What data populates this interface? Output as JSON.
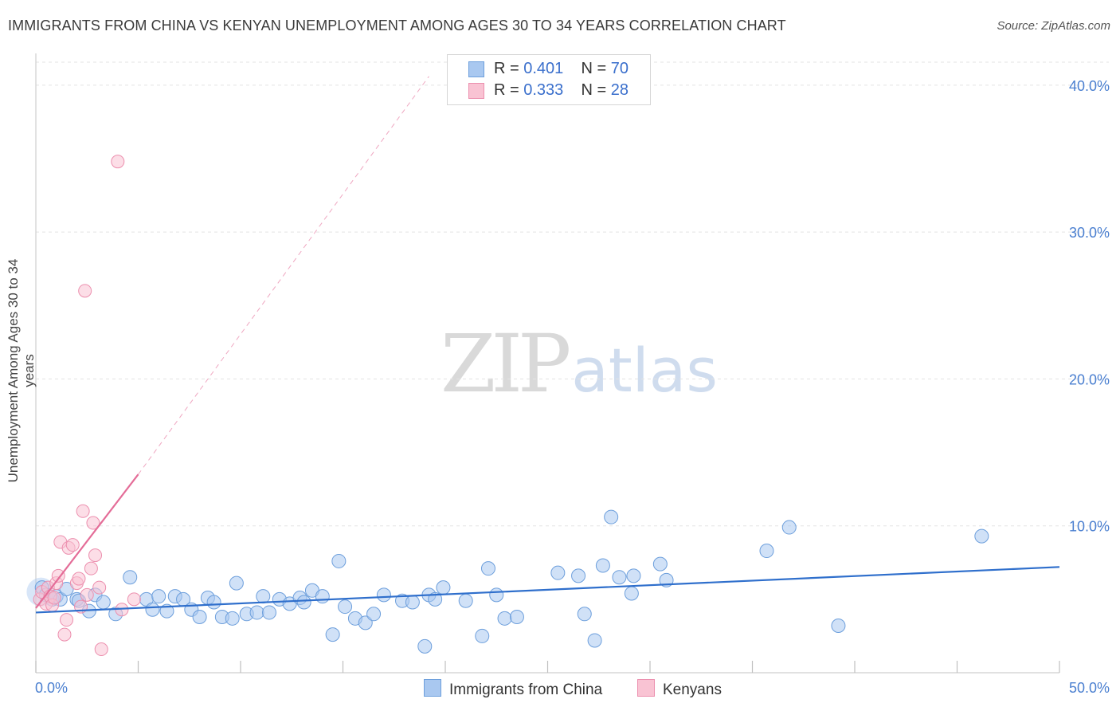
{
  "title": "IMMIGRANTS FROM CHINA VS KENYAN UNEMPLOYMENT AMONG AGES 30 TO 34 YEARS CORRELATION CHART",
  "source": "Source: ZipAtlas.com",
  "watermark": {
    "zip": "ZIP",
    "atlas": "atlas"
  },
  "legend": {
    "china": {
      "r_label": "R = ",
      "r_value": "0.401",
      "n_label": "N = ",
      "n_value": "70"
    },
    "kenyans": {
      "r_label": "R = ",
      "r_value": "0.333",
      "n_label": "N = ",
      "n_value": "28"
    }
  },
  "colors": {
    "china_fill": "#a9c8f0",
    "china_stroke": "#6d9fdc",
    "china_line": "#2f6fcc",
    "kenyans_fill": "#f9c3d3",
    "kenyans_stroke": "#ec8fae",
    "kenyans_line": "#e46d98",
    "grid": "#e3e3e3",
    "axis_text": "#4a7fd0"
  },
  "chart_data": {
    "type": "scatter",
    "title": "IMMIGRANTS FROM CHINA VS KENYAN UNEMPLOYMENT AMONG AGES 30 TO 34 YEARS CORRELATION CHART",
    "xlabel": "",
    "ylabel": "Unemployment Among Ages 30 to 34 years",
    "xlim": [
      0,
      50
    ],
    "ylim": [
      0,
      42
    ],
    "x_tick_labels": [
      "0.0%",
      "50.0%"
    ],
    "y_ticks": [
      10,
      20,
      30,
      40
    ],
    "y_tick_labels": [
      "10.0%",
      "20.0%",
      "30.0%",
      "40.0%"
    ],
    "grid": true,
    "legend_position": "bottom",
    "series": [
      {
        "name": "Immigrants from China",
        "points": [
          [
            0.3,
            5.8
          ],
          [
            0.5,
            5.3
          ],
          [
            0.8,
            5.0
          ],
          [
            1.0,
            5.2
          ],
          [
            1.2,
            5.0
          ],
          [
            1.5,
            5.7
          ],
          [
            2.0,
            5.0
          ],
          [
            2.1,
            4.9
          ],
          [
            2.6,
            4.2
          ],
          [
            2.9,
            5.3
          ],
          [
            3.3,
            4.8
          ],
          [
            3.9,
            4.0
          ],
          [
            4.6,
            6.5
          ],
          [
            5.4,
            5.0
          ],
          [
            5.7,
            4.3
          ],
          [
            6.0,
            5.2
          ],
          [
            6.4,
            4.2
          ],
          [
            6.8,
            5.2
          ],
          [
            7.2,
            5.0
          ],
          [
            7.6,
            4.3
          ],
          [
            8.0,
            3.8
          ],
          [
            8.4,
            5.1
          ],
          [
            8.7,
            4.8
          ],
          [
            9.1,
            3.8
          ],
          [
            9.6,
            3.7
          ],
          [
            9.8,
            6.1
          ],
          [
            10.3,
            4.0
          ],
          [
            10.8,
            4.1
          ],
          [
            11.1,
            5.2
          ],
          [
            11.4,
            4.1
          ],
          [
            11.9,
            5.0
          ],
          [
            12.4,
            4.7
          ],
          [
            12.9,
            5.1
          ],
          [
            13.1,
            4.8
          ],
          [
            13.5,
            5.6
          ],
          [
            14.0,
            5.2
          ],
          [
            14.5,
            2.6
          ],
          [
            14.8,
            7.6
          ],
          [
            15.1,
            4.5
          ],
          [
            15.6,
            3.7
          ],
          [
            16.1,
            3.4
          ],
          [
            16.5,
            4.0
          ],
          [
            17.0,
            5.3
          ],
          [
            17.9,
            4.9
          ],
          [
            18.4,
            4.8
          ],
          [
            19.0,
            1.8
          ],
          [
            19.2,
            5.3
          ],
          [
            19.5,
            5.0
          ],
          [
            19.9,
            5.8
          ],
          [
            21.0,
            4.9
          ],
          [
            21.8,
            2.5
          ],
          [
            22.1,
            7.1
          ],
          [
            22.5,
            5.3
          ],
          [
            22.9,
            3.7
          ],
          [
            23.5,
            3.8
          ],
          [
            25.5,
            6.8
          ],
          [
            26.5,
            6.6
          ],
          [
            26.8,
            4.0
          ],
          [
            27.3,
            2.2
          ],
          [
            27.7,
            7.3
          ],
          [
            28.1,
            10.6
          ],
          [
            28.5,
            6.5
          ],
          [
            29.1,
            5.4
          ],
          [
            29.2,
            6.6
          ],
          [
            30.5,
            7.4
          ],
          [
            30.8,
            6.3
          ],
          [
            35.7,
            8.3
          ],
          [
            36.8,
            9.9
          ],
          [
            39.2,
            3.2
          ],
          [
            46.2,
            9.3
          ]
        ],
        "trend": {
          "x": [
            0,
            50
          ],
          "y": [
            4.1,
            7.2
          ]
        }
      },
      {
        "name": "Kenyans",
        "points": [
          [
            0.2,
            5.0
          ],
          [
            0.3,
            5.5
          ],
          [
            0.5,
            4.7
          ],
          [
            0.6,
            5.8
          ],
          [
            0.7,
            5.2
          ],
          [
            0.8,
            4.6
          ],
          [
            0.9,
            5.1
          ],
          [
            1.0,
            6.1
          ],
          [
            1.1,
            6.6
          ],
          [
            1.2,
            8.9
          ],
          [
            1.4,
            2.6
          ],
          [
            1.5,
            3.6
          ],
          [
            1.6,
            8.5
          ],
          [
            1.8,
            8.7
          ],
          [
            2.0,
            6.1
          ],
          [
            2.1,
            6.4
          ],
          [
            2.2,
            4.5
          ],
          [
            2.3,
            11.0
          ],
          [
            2.5,
            5.3
          ],
          [
            2.4,
            26.0
          ],
          [
            2.7,
            7.1
          ],
          [
            2.8,
            10.2
          ],
          [
            2.9,
            8.0
          ],
          [
            3.1,
            5.8
          ],
          [
            3.2,
            1.6
          ],
          [
            4.0,
            34.8
          ],
          [
            4.2,
            4.3
          ],
          [
            4.8,
            5.0
          ]
        ],
        "trend": {
          "x": [
            0,
            5
          ],
          "y": [
            4.4,
            13.5
          ]
        },
        "trend_extension": {
          "x": [
            5,
            19.2
          ],
          "y": [
            13.5,
            40.6
          ]
        }
      }
    ]
  }
}
